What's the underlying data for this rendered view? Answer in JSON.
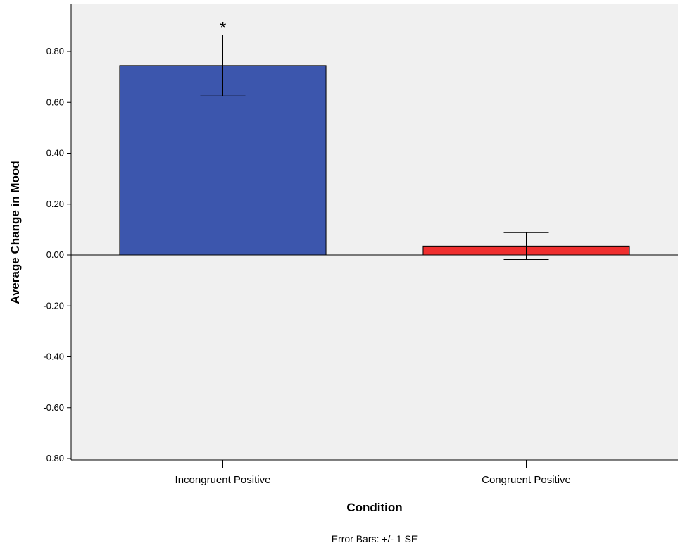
{
  "chart_data": {
    "type": "bar",
    "categories": [
      "Incongruent Positive",
      "Congruent Positive"
    ],
    "values": [
      0.745,
      0.035
    ],
    "error_se": [
      0.12,
      0.053
    ],
    "colors": [
      "#3c56ad",
      "#ef2f2f"
    ],
    "annotations": [
      "*",
      ""
    ],
    "xlabel": "Condition",
    "ylabel": "Average Change in Mood",
    "ylim": [
      -0.8,
      0.8
    ],
    "yticks": [
      -0.8,
      -0.6,
      -0.4,
      -0.2,
      0.0,
      0.2,
      0.4,
      0.6,
      0.8
    ],
    "ytick_labels": [
      "-0.80",
      "-0.60",
      "-0.40",
      "-0.20",
      "0.00",
      "0.20",
      "0.40",
      "0.60",
      "0.80"
    ],
    "footnote": "Error Bars: +/- 1 SE",
    "plot_background": "#f0f0f0",
    "grid": false
  }
}
